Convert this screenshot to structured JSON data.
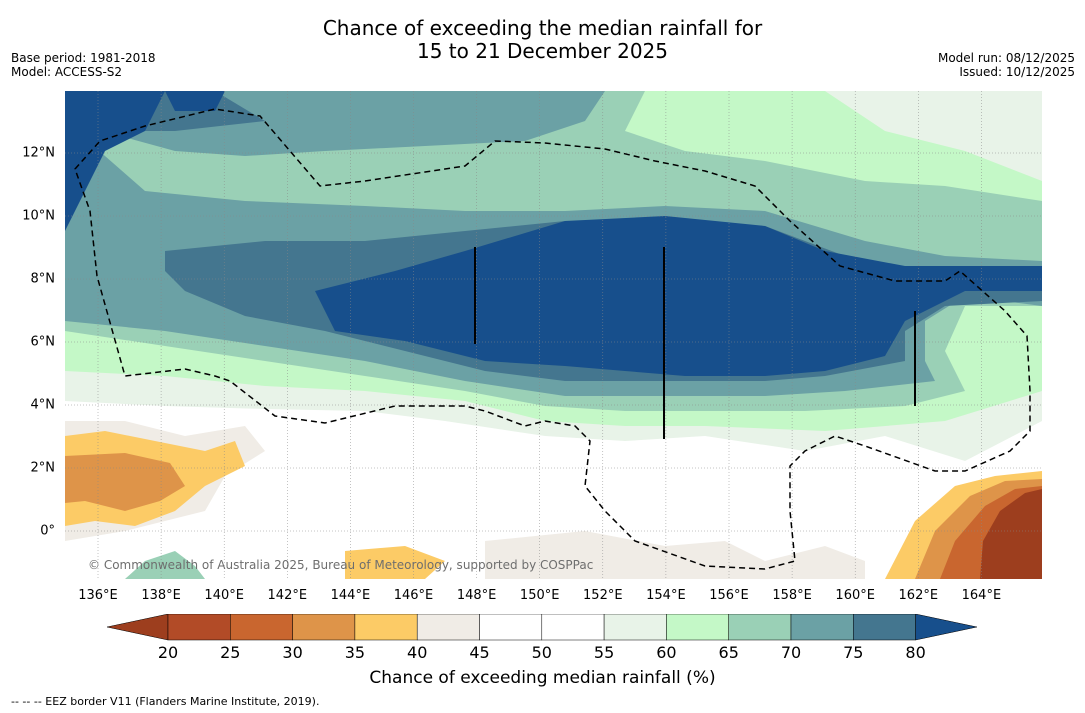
{
  "title": {
    "line1": "Chance of exceeding the median rainfall for",
    "line2": "15 to 21 December 2025"
  },
  "meta": {
    "base_period": "Base period: 1981-2018",
    "model": "Model: ACCESS-S2",
    "model_run": "Model run: 08/12/2025",
    "issued": "Issued: 10/12/2025"
  },
  "map": {
    "lon_labels": [
      "136°E",
      "138°E",
      "140°E",
      "142°E",
      "144°E",
      "146°E",
      "148°E",
      "150°E",
      "152°E",
      "154°E",
      "156°E",
      "158°E",
      "160°E",
      "162°E",
      "164°E"
    ],
    "lat_labels": [
      "12°N",
      "10°N",
      "8°N",
      "6°N",
      "4°N",
      "2°N",
      "0°"
    ],
    "credit": "© Commonwealth of Australia 2025, Bureau of Meteorology, supported by COSPPac",
    "regions": [
      {
        "name": "north-central-moderate",
        "lon_min": 139,
        "lon_max": 158,
        "lat_min": 9.5,
        "lat_max": 12.5,
        "class": "60-65"
      },
      {
        "name": "central-wet-core",
        "lon_min": 141,
        "lon_max": 163,
        "lat_min": 3.5,
        "lat_max": 9.5,
        "class": "above-80"
      },
      {
        "name": "southwest-dry",
        "lon_min": 135,
        "lon_max": 139,
        "lat_min": 0.5,
        "lat_max": 3,
        "class": "30-35"
      },
      {
        "name": "southeast-dry",
        "lon_min": 161,
        "lon_max": 166,
        "lat_min": -1.5,
        "lat_max": 2.5,
        "class": "below-20"
      }
    ]
  },
  "colorbar": {
    "title": "Chance of exceeding median rainfall (%)",
    "labels": [
      "20",
      "25",
      "30",
      "35",
      "40",
      "45",
      "50",
      "55",
      "60",
      "65",
      "70",
      "75",
      "80"
    ],
    "colors": [
      "#9d3e1e",
      "#b24b27",
      "#c9662f",
      "#de9449",
      "#fccb66",
      "#f0ece6",
      "#ffffff",
      "#ffffff",
      "#e8f3e8",
      "#c4f8c7",
      "#9ad0b6",
      "#6ba1a5",
      "#44768f",
      "#174f8c"
    ]
  },
  "footer": "--  --  -- EEZ border V11 (Flanders Marine Institute, 2019)."
}
